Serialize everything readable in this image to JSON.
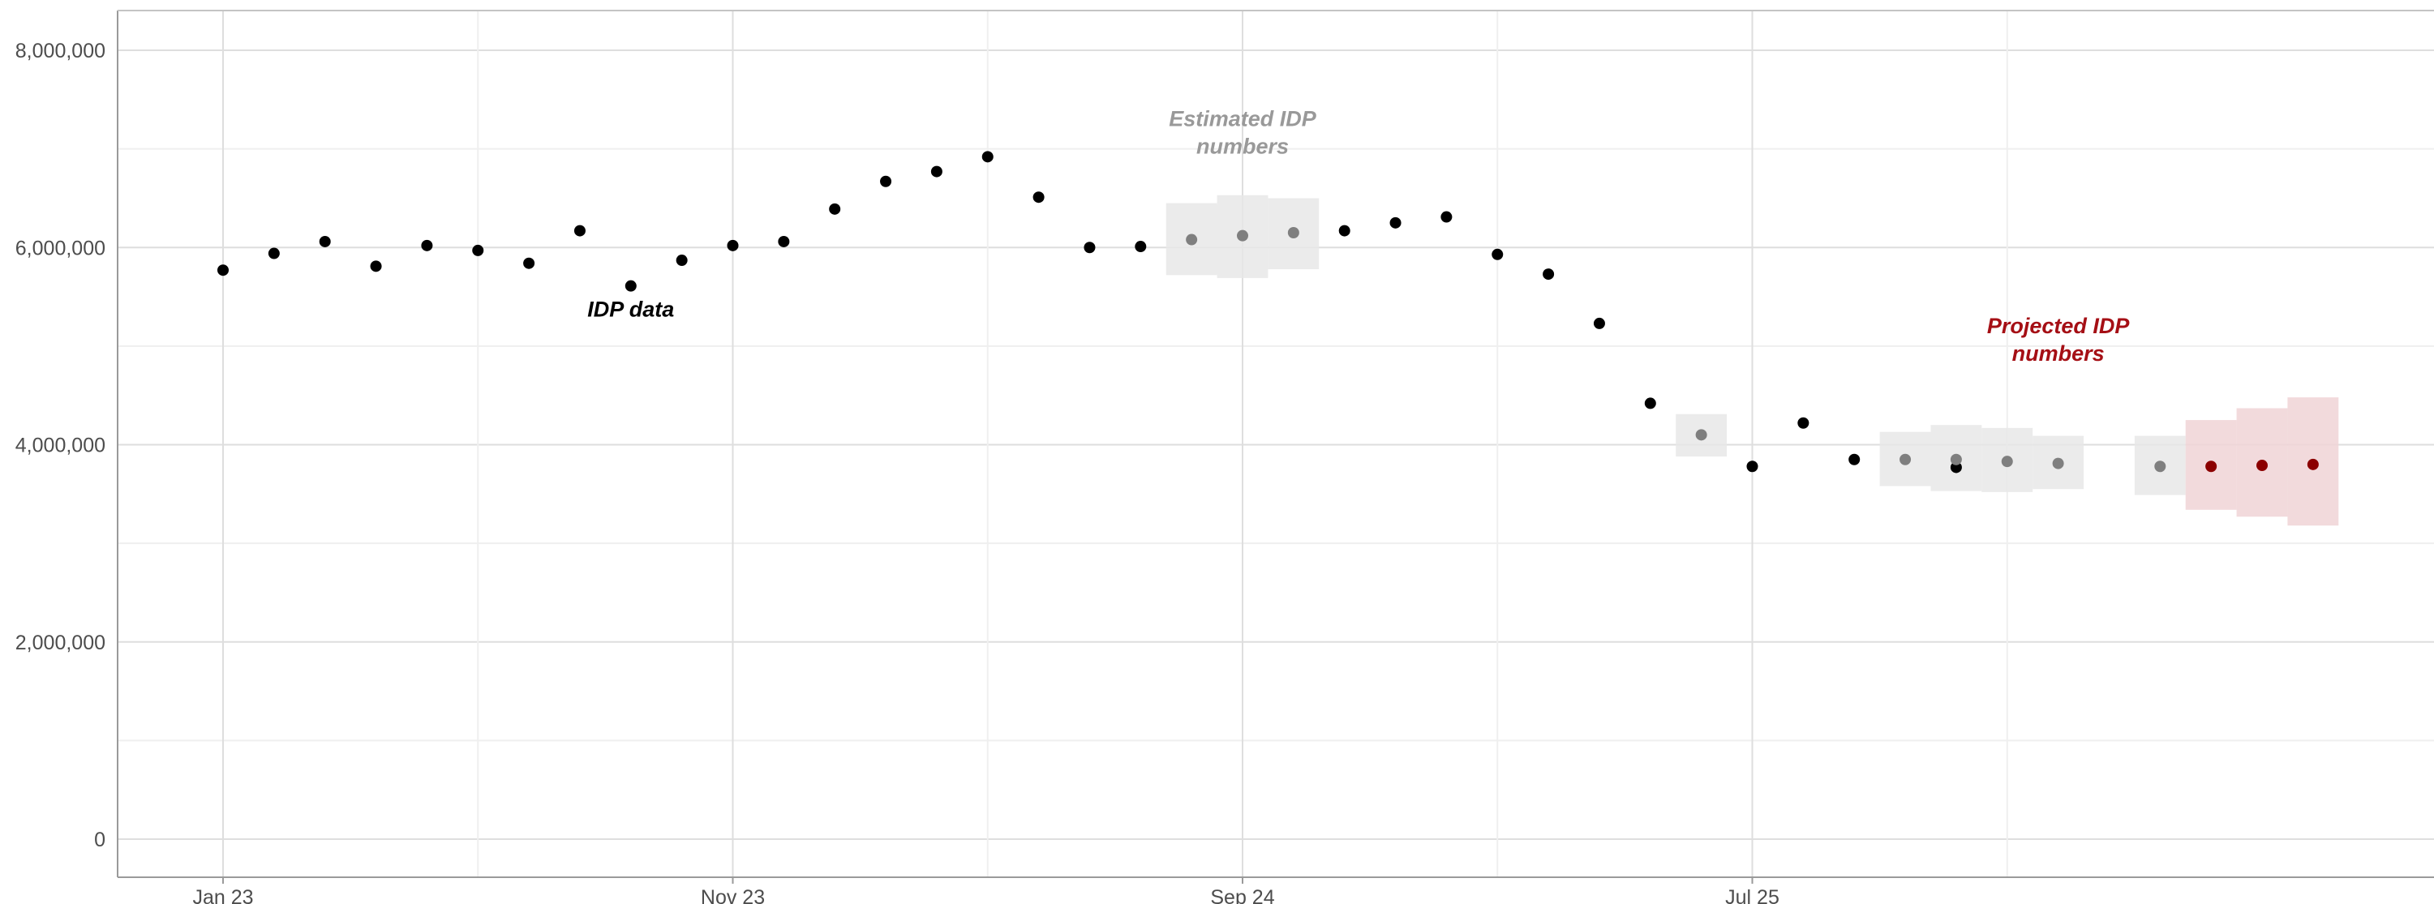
{
  "chart_data": {
    "type": "scatter",
    "title": "",
    "xlabel": "",
    "ylabel": "",
    "ylim": [
      0,
      8000000
    ],
    "y_ticks": [
      0,
      2000000,
      4000000,
      6000000,
      8000000
    ],
    "y_tick_labels": [
      "0",
      "2,000,000",
      "4,000,000",
      "6,000,000",
      "8,000,000"
    ],
    "x_tick_labels": [
      {
        "date": "2023-01",
        "label": "Jan 23"
      },
      {
        "date": "2023-11",
        "label": "Nov 23"
      },
      {
        "date": "2024-09",
        "label": "Sep 24"
      },
      {
        "date": "2025-07",
        "label": "Jul 25"
      }
    ],
    "x_minor_gridlines": [
      "2023-06",
      "2024-04",
      "2025-02",
      "2025-12"
    ],
    "xlim": [
      "2022-11",
      "2026-05"
    ],
    "grid": true,
    "colors": {
      "idp": "#000000",
      "estimated": "#7f7f7f",
      "estimated_band": "#e8e8e8",
      "projected": "#8b0000",
      "projected_band": "#f0d4d6",
      "projected_label": "#a50f15",
      "estimated_label": "#999999"
    },
    "annotations": [
      {
        "text": "IDP data",
        "date": "2023-09",
        "y": 5300000,
        "color": "#000000"
      },
      {
        "text": "Estimated IDP numbers",
        "date": "2024-09",
        "y": 6950000,
        "color": "#999999"
      },
      {
        "text": "Projected IDP numbers",
        "date": "2026-01",
        "y": 4850000,
        "color": "#a50f15"
      }
    ],
    "series": [
      {
        "type": "idp",
        "points": [
          {
            "x": "2023-01",
            "y": 5770000
          },
          {
            "x": "2023-02",
            "y": 5940000
          },
          {
            "x": "2023-03",
            "y": 6060000
          },
          {
            "x": "2023-04",
            "y": 5810000
          },
          {
            "x": "2023-05",
            "y": 6020000
          },
          {
            "x": "2023-06",
            "y": 5970000
          },
          {
            "x": "2023-07",
            "y": 5840000
          },
          {
            "x": "2023-08",
            "y": 6170000
          },
          {
            "x": "2023-09",
            "y": 5610000
          },
          {
            "x": "2023-10",
            "y": 5870000
          },
          {
            "x": "2023-11",
            "y": 6020000
          },
          {
            "x": "2023-12",
            "y": 6060000
          },
          {
            "x": "2024-01",
            "y": 6390000
          },
          {
            "x": "2024-02",
            "y": 6670000
          },
          {
            "x": "2024-03",
            "y": 6770000
          },
          {
            "x": "2024-04",
            "y": 6920000
          },
          {
            "x": "2024-05",
            "y": 6510000
          },
          {
            "x": "2024-06",
            "y": 6000000
          },
          {
            "x": "2024-07",
            "y": 6010000
          },
          {
            "x": "2024-11",
            "y": 6170000
          },
          {
            "x": "2024-12",
            "y": 6250000
          },
          {
            "x": "2025-01",
            "y": 6310000
          },
          {
            "x": "2025-02",
            "y": 5930000
          },
          {
            "x": "2025-03",
            "y": 5730000
          },
          {
            "x": "2025-04",
            "y": 5230000
          },
          {
            "x": "2025-05",
            "y": 4420000
          },
          {
            "x": "2025-07",
            "y": 3780000
          },
          {
            "x": "2025-08",
            "y": 4220000
          },
          {
            "x": "2025-09",
            "y": 3850000
          },
          {
            "x": "2025-11",
            "y": 3770000
          }
        ]
      },
      {
        "type": "estimated",
        "points": [
          {
            "x": "2024-08",
            "y": 6080000,
            "low": 5720000,
            "high": 6450000
          },
          {
            "x": "2024-09",
            "y": 6120000,
            "low": 5690000,
            "high": 6530000
          },
          {
            "x": "2024-10",
            "y": 6150000,
            "low": 5780000,
            "high": 6500000
          },
          {
            "x": "2025-06",
            "y": 4100000,
            "low": 3880000,
            "high": 4310000
          },
          {
            "x": "2025-10",
            "y": 3850000,
            "low": 3580000,
            "high": 4130000
          },
          {
            "x": "2025-11",
            "y": 3850000,
            "low": 3530000,
            "high": 4200000
          },
          {
            "x": "2025-12",
            "y": 3830000,
            "low": 3520000,
            "high": 4170000
          },
          {
            "x": "2026-01",
            "y": 3810000,
            "low": 3550000,
            "high": 4090000
          },
          {
            "x": "2026-03",
            "y": 3780000,
            "low": 3490000,
            "high": 4090000
          }
        ]
      },
      {
        "type": "projected",
        "points": [
          {
            "x": "2026-04",
            "y": 3780000,
            "low": 3340000,
            "high": 4250000
          },
          {
            "x": "2026-05",
            "y": 3790000,
            "low": 3270000,
            "high": 4370000
          },
          {
            "x": "2026-06",
            "y": 3800000,
            "low": 3180000,
            "high": 4480000
          }
        ]
      }
    ]
  }
}
